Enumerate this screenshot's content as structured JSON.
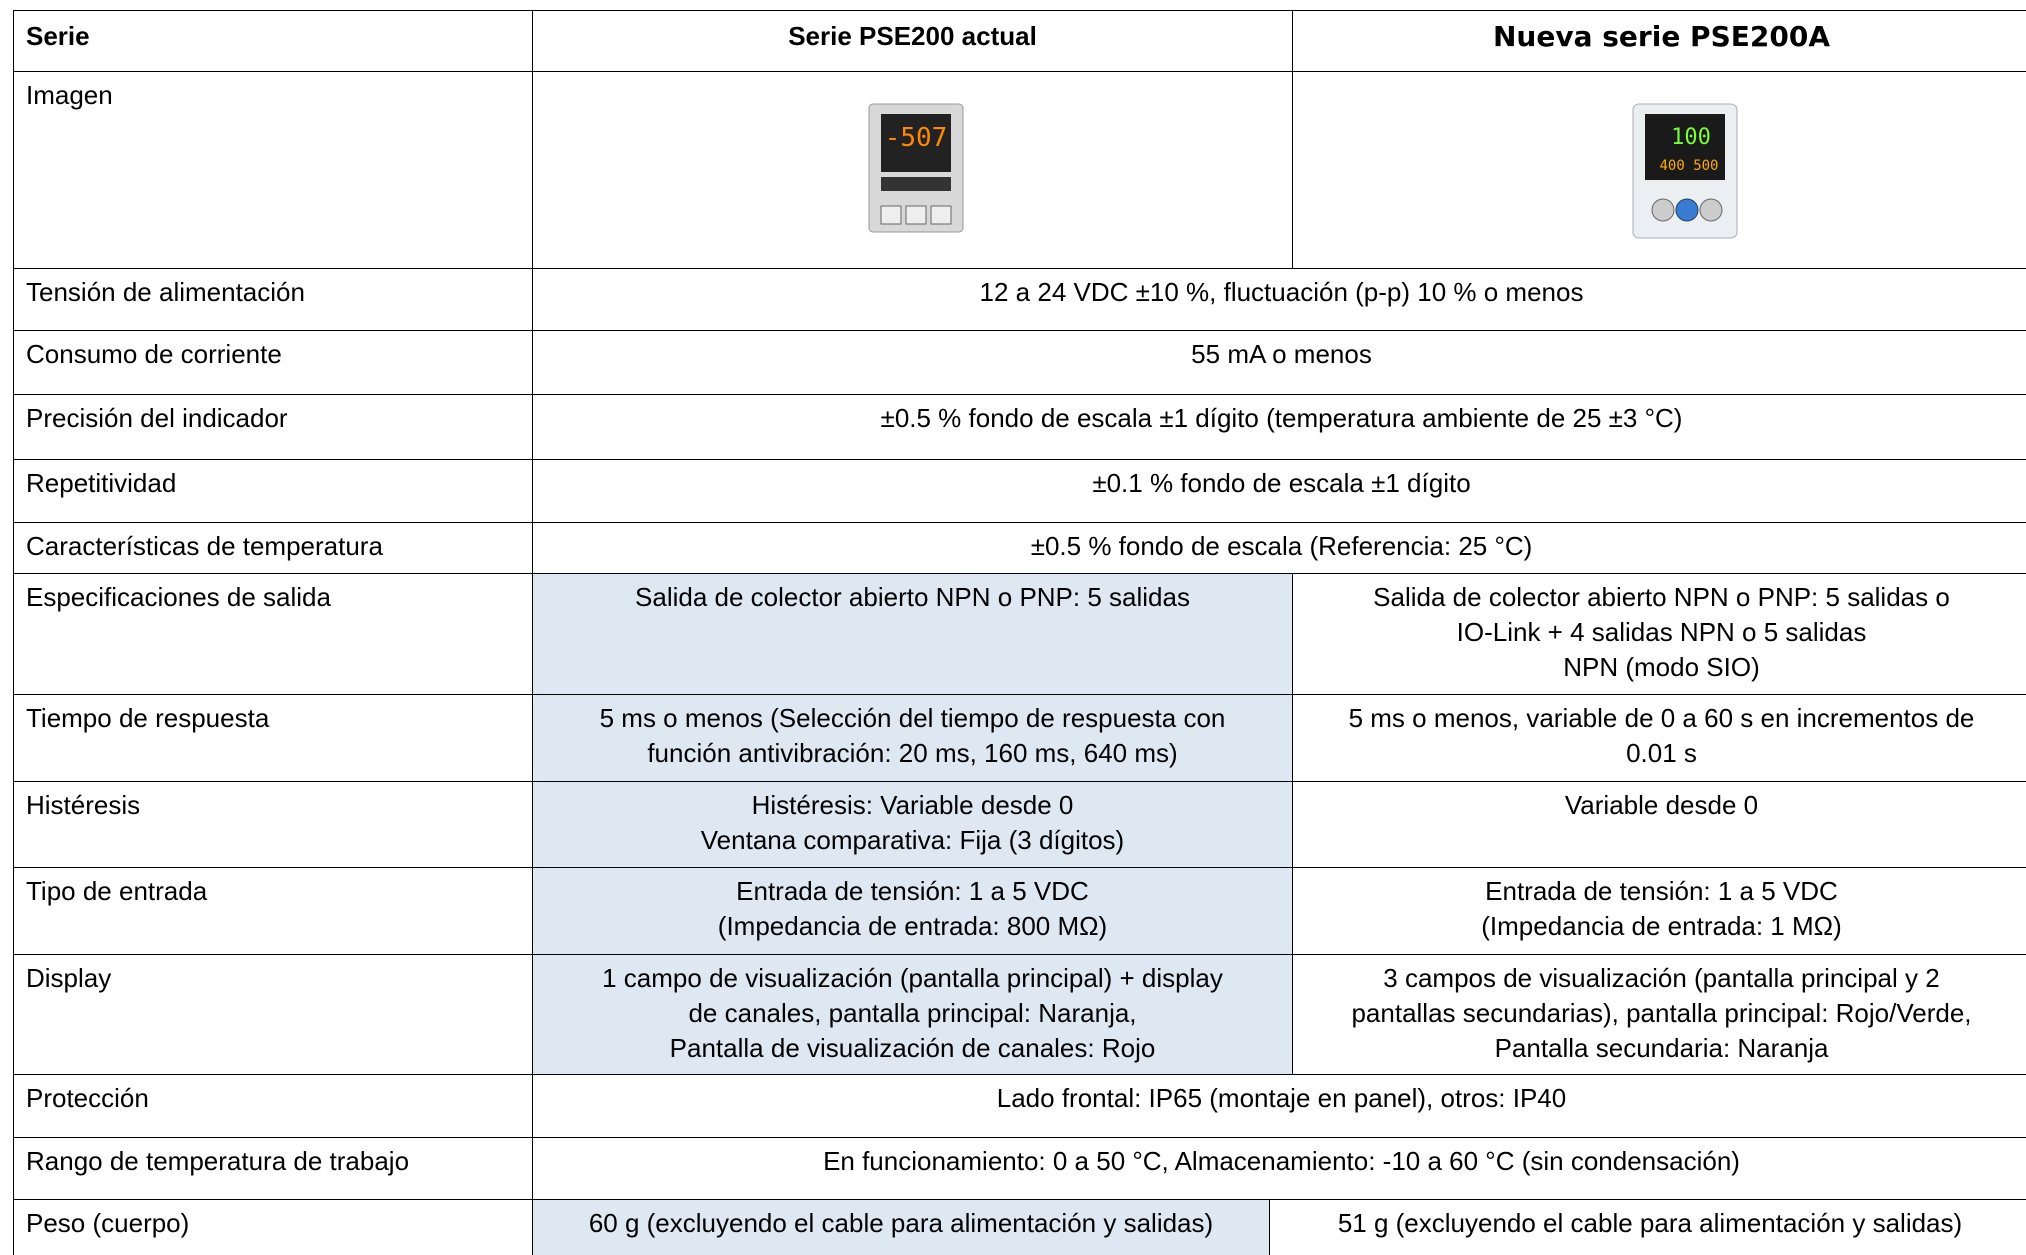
{
  "table": {
    "header": [
      "Serie",
      "Serie PSE200 actual",
      "Nueva serie PSE200A"
    ],
    "rows": [
      {
        "label": "Imagen"
      },
      {
        "label": "Tensión de alimentación",
        "common": [
          "12 a 24 VDC ±10 %, fluctuación (p-p) 10 % o menos"
        ]
      },
      {
        "label": "Consumo de corriente",
        "common": [
          "55 mA o menos"
        ]
      },
      {
        "label": "Precisión del indicador",
        "common": [
          "±0.5 % fondo de escala ±1 dígito (temperatura ambiente de 25 ±3 °C)"
        ]
      },
      {
        "label": "Repetitividad",
        "common": [
          "±0.1 % fondo de escala ±1 dígito"
        ]
      },
      {
        "label": "Características de temperatura",
        "common": [
          "±0.5 % fondo de escala (Referencia: 25 °C)"
        ]
      },
      {
        "label": "Especificaciones de salida",
        "actual": [
          "Salida de colector abierto NPN o PNP: 5 salidas"
        ],
        "nueva": [
          "Salida de colector abierto NPN o PNP: 5 salidas o",
          "IO-Link + 4 salidas NPN o 5 salidas",
          "NPN (modo SIO)"
        ]
      },
      {
        "label": "Tiempo de respuesta",
        "actual": [
          "5 ms o menos (Selección del tiempo de respuesta con",
          "función antivibración: 20 ms, 160 ms, 640 ms)"
        ],
        "nueva": [
          "5 ms o menos, variable de 0 a 60 s en incrementos de",
          "0.01 s"
        ]
      },
      {
        "label": "Histéresis",
        "actual": [
          "Histéresis: Variable desde 0",
          "Ventana comparativa: Fija (3 dígitos)"
        ],
        "nueva": [
          "Variable desde 0"
        ]
      },
      {
        "label": "Tipo de entrada",
        "actual": [
          "Entrada de tensión: 1 a 5 VDC",
          "(Impedancia de entrada: 800 MΩ)"
        ],
        "nueva": [
          "Entrada de tensión: 1 a 5 VDC",
          "(Impedancia de entrada: 1 MΩ)"
        ]
      },
      {
        "label": "Display",
        "actual": [
          "1 campo de visualización (pantalla principal) + display",
          "de canales, pantalla principal: Naranja,",
          "Pantalla de visualización de canales: Rojo"
        ],
        "nueva": [
          "3 campos de visualización (pantalla principal y 2",
          "pantallas secundarias), pantalla principal: Rojo/Verde,",
          "Pantalla secundaria: Naranja"
        ]
      },
      {
        "label": "Protección",
        "common": [
          "Lado frontal: IP65 (montaje en panel), otros: IP40"
        ]
      },
      {
        "label": "Rango de temperatura de trabajo",
        "common": [
          "En funcionamiento: 0 a 50 °C, Almacenamiento: -10 a 60 °C (sin condensación)"
        ]
      },
      {
        "label": "Peso (cuerpo)",
        "actual": [
          "60 g (excluyendo el cable para alimentación y salidas)"
        ],
        "nueva": [
          "51 g (excluyendo el cable para alimentación y salidas)"
        ]
      }
    ]
  }
}
